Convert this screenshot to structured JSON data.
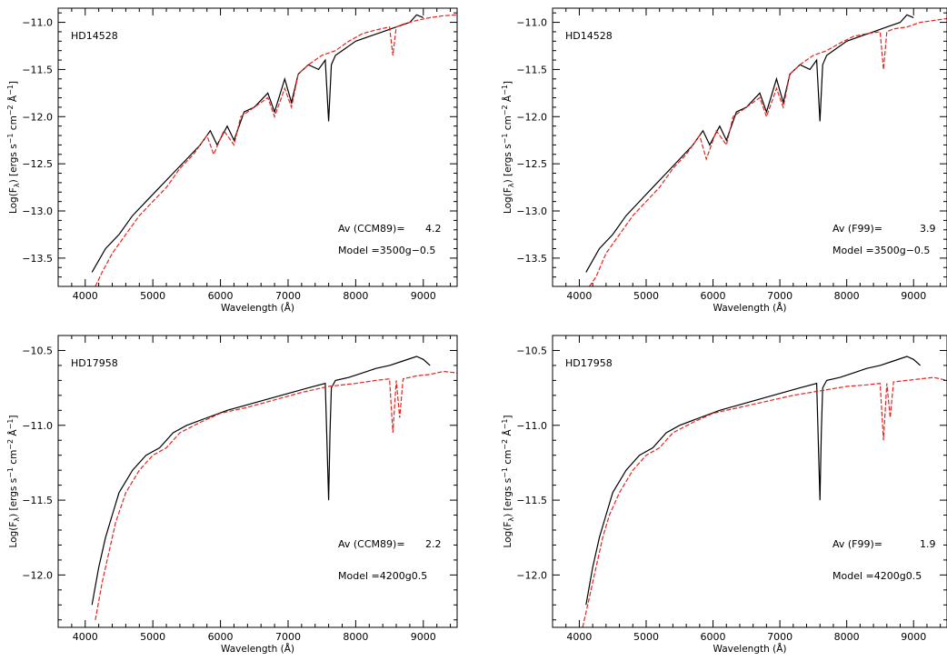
{
  "figure": {
    "xlabel": "Wavelength (Å)",
    "ylabel_parts": [
      "Log(F",
      "λ",
      ") [ergs s",
      "−1",
      " cm",
      "−2",
      " Å",
      "−1",
      "]"
    ]
  },
  "colors": {
    "observed": "#000000",
    "model": "#e8231f",
    "axes": "#000000"
  },
  "chart_data": [
    {
      "type": "line",
      "star": "HD14528",
      "extinction_label": "Av (CCM89)=",
      "extinction_value": "4.2",
      "model_label": "Model =3500g−0.5",
      "xlim": [
        3600,
        9500
      ],
      "ylim": [
        -13.8,
        -10.85
      ],
      "xticks": [
        4000,
        5000,
        6000,
        7000,
        8000,
        9000
      ],
      "yticks": [
        -13.5,
        -13.0,
        -12.5,
        -12.0,
        -11.5,
        -11.0
      ],
      "ytick_labels": [
        "−13.5",
        "−13.0",
        "−12.5",
        "−12.0",
        "−11.5",
        "−11.0"
      ],
      "series": [
        {
          "style": "solid",
          "color": "#000000",
          "x": [
            4100,
            4300,
            4500,
            4700,
            4900,
            5100,
            5300,
            5500,
            5700,
            5850,
            5950,
            6100,
            6200,
            6350,
            6500,
            6700,
            6800,
            6950,
            7050,
            7150,
            7300,
            7450,
            7550,
            7600,
            7620,
            7640,
            7700,
            7800,
            8000,
            8200,
            8400,
            8600,
            8800,
            8900,
            9000
          ],
          "y": [
            -13.65,
            -13.4,
            -13.25,
            -13.05,
            -12.9,
            -12.75,
            -12.6,
            -12.45,
            -12.3,
            -12.15,
            -12.3,
            -12.1,
            -12.25,
            -11.95,
            -11.9,
            -11.75,
            -11.95,
            -11.6,
            -11.85,
            -11.55,
            -11.45,
            -11.5,
            -11.4,
            -12.05,
            -11.75,
            -11.45,
            -11.35,
            -11.3,
            -11.2,
            -11.15,
            -11.1,
            -11.05,
            -11.0,
            -10.92,
            -10.95
          ]
        },
        {
          "style": "dashed",
          "color": "#e8231f",
          "x": [
            4150,
            4250,
            4400,
            4600,
            4800,
            5000,
            5200,
            5400,
            5600,
            5800,
            5900,
            6050,
            6200,
            6300,
            6500,
            6700,
            6800,
            6950,
            7050,
            7150,
            7300,
            7500,
            7700,
            7900,
            8100,
            8300,
            8500,
            8550,
            8600,
            8700,
            8900,
            9100,
            9300,
            9500
          ],
          "y": [
            -13.8,
            -13.65,
            -13.45,
            -13.25,
            -13.05,
            -12.9,
            -12.75,
            -12.55,
            -12.4,
            -12.2,
            -12.4,
            -12.15,
            -12.3,
            -12.0,
            -11.9,
            -11.8,
            -12.0,
            -11.7,
            -11.9,
            -11.55,
            -11.45,
            -11.35,
            -11.3,
            -11.2,
            -11.12,
            -11.08,
            -11.05,
            -11.35,
            -11.05,
            -11.02,
            -10.98,
            -10.95,
            -10.93,
            -10.92
          ]
        }
      ]
    },
    {
      "type": "line",
      "star": "HD14528",
      "extinction_label": "Av (F99)=",
      "extinction_value": "3.9",
      "model_label": "Model =3500g−0.5",
      "xlim": [
        3600,
        9500
      ],
      "ylim": [
        -13.8,
        -10.85
      ],
      "xticks": [
        4000,
        5000,
        6000,
        7000,
        8000,
        9000
      ],
      "yticks": [
        -13.5,
        -13.0,
        -12.5,
        -12.0,
        -11.5,
        -11.0
      ],
      "ytick_labels": [
        "−13.5",
        "−13.0",
        "−12.5",
        "−12.0",
        "−11.5",
        "−11.0"
      ],
      "series": [
        {
          "style": "solid",
          "color": "#000000",
          "x": [
            4100,
            4300,
            4500,
            4700,
            4900,
            5100,
            5300,
            5500,
            5700,
            5850,
            5950,
            6100,
            6200,
            6350,
            6500,
            6700,
            6800,
            6950,
            7050,
            7150,
            7300,
            7450,
            7550,
            7600,
            7620,
            7640,
            7700,
            7800,
            8000,
            8200,
            8400,
            8600,
            8800,
            8900,
            9000
          ],
          "y": [
            -13.65,
            -13.4,
            -13.25,
            -13.05,
            -12.9,
            -12.75,
            -12.6,
            -12.45,
            -12.3,
            -12.15,
            -12.3,
            -12.1,
            -12.25,
            -11.95,
            -11.9,
            -11.75,
            -11.95,
            -11.6,
            -11.85,
            -11.55,
            -11.45,
            -11.5,
            -11.4,
            -12.05,
            -11.75,
            -11.45,
            -11.35,
            -11.3,
            -11.2,
            -11.15,
            -11.1,
            -11.05,
            -11.0,
            -10.92,
            -10.95
          ]
        },
        {
          "style": "dashed",
          "color": "#e8231f",
          "x": [
            4150,
            4250,
            4400,
            4600,
            4800,
            5000,
            5200,
            5400,
            5600,
            5800,
            5900,
            6050,
            6200,
            6300,
            6500,
            6700,
            6800,
            6950,
            7050,
            7150,
            7300,
            7500,
            7700,
            7900,
            8100,
            8300,
            8500,
            8550,
            8600,
            8700,
            8900,
            9100,
            9300,
            9500
          ],
          "y": [
            -13.8,
            -13.7,
            -13.45,
            -13.25,
            -13.05,
            -12.9,
            -12.75,
            -12.55,
            -12.4,
            -12.2,
            -12.45,
            -12.15,
            -12.3,
            -12.0,
            -11.9,
            -11.8,
            -12.0,
            -11.7,
            -11.9,
            -11.55,
            -11.45,
            -11.35,
            -11.3,
            -11.22,
            -11.15,
            -11.12,
            -11.1,
            -11.5,
            -11.1,
            -11.07,
            -11.05,
            -11.0,
            -10.98,
            -10.96
          ]
        }
      ]
    },
    {
      "type": "line",
      "star": "HD17958",
      "extinction_label": "Av (CCM89)=",
      "extinction_value": "2.2",
      "model_label": "Model =4200g0.5",
      "xlim": [
        3600,
        9500
      ],
      "ylim": [
        -12.35,
        -10.4
      ],
      "xticks": [
        4000,
        5000,
        6000,
        7000,
        8000,
        9000
      ],
      "yticks": [
        -12.0,
        -11.5,
        -11.0,
        -10.5
      ],
      "ytick_labels": [
        "−12.0",
        "−11.5",
        "−11.0",
        "−10.5"
      ],
      "series": [
        {
          "style": "solid",
          "color": "#000000",
          "x": [
            4100,
            4200,
            4300,
            4400,
            4500,
            4700,
            4900,
            5100,
            5300,
            5500,
            5800,
            6100,
            6500,
            6900,
            7300,
            7550,
            7600,
            7620,
            7640,
            7700,
            7900,
            8100,
            8300,
            8500,
            8700,
            8900,
            9000,
            9100
          ],
          "y": [
            -12.2,
            -11.95,
            -11.75,
            -11.6,
            -11.45,
            -11.3,
            -11.2,
            -11.15,
            -11.05,
            -11.0,
            -10.95,
            -10.9,
            -10.85,
            -10.8,
            -10.75,
            -10.72,
            -11.5,
            -11.05,
            -10.75,
            -10.7,
            -10.68,
            -10.65,
            -10.62,
            -10.6,
            -10.57,
            -10.54,
            -10.56,
            -10.6
          ]
        },
        {
          "style": "dashed",
          "color": "#e8231f",
          "x": [
            4150,
            4250,
            4350,
            4450,
            4600,
            4800,
            5000,
            5200,
            5400,
            5700,
            6000,
            6400,
            6800,
            7200,
            7600,
            8000,
            8300,
            8500,
            8550,
            8600,
            8650,
            8700,
            8900,
            9100,
            9300,
            9500
          ],
          "y": [
            -12.3,
            -12.05,
            -11.85,
            -11.65,
            -11.45,
            -11.3,
            -11.2,
            -11.15,
            -11.05,
            -10.98,
            -10.92,
            -10.88,
            -10.83,
            -10.78,
            -10.74,
            -10.72,
            -10.7,
            -10.69,
            -11.05,
            -10.7,
            -10.95,
            -10.69,
            -10.67,
            -10.66,
            -10.64,
            -10.65
          ]
        }
      ]
    },
    {
      "type": "line",
      "star": "HD17958",
      "extinction_label": "Av (F99)=",
      "extinction_value": "1.9",
      "model_label": "Model =4200g0.5",
      "xlim": [
        3600,
        9500
      ],
      "ylim": [
        -12.35,
        -10.4
      ],
      "xticks": [
        4000,
        5000,
        6000,
        7000,
        8000,
        9000
      ],
      "yticks": [
        -12.0,
        -11.5,
        -11.0,
        -10.5
      ],
      "ytick_labels": [
        "−12.0",
        "−11.5",
        "−11.0",
        "−10.5"
      ],
      "series": [
        {
          "style": "solid",
          "color": "#000000",
          "x": [
            4100,
            4200,
            4300,
            4400,
            4500,
            4700,
            4900,
            5100,
            5300,
            5500,
            5800,
            6100,
            6500,
            6900,
            7300,
            7550,
            7600,
            7620,
            7640,
            7700,
            7900,
            8100,
            8300,
            8500,
            8700,
            8900,
            9000,
            9100
          ],
          "y": [
            -12.2,
            -11.95,
            -11.75,
            -11.6,
            -11.45,
            -11.3,
            -11.2,
            -11.15,
            -11.05,
            -11.0,
            -10.95,
            -10.9,
            -10.85,
            -10.8,
            -10.75,
            -10.72,
            -11.5,
            -11.05,
            -10.75,
            -10.7,
            -10.68,
            -10.65,
            -10.62,
            -10.6,
            -10.57,
            -10.54,
            -10.56,
            -10.6
          ]
        },
        {
          "style": "dashed",
          "color": "#e8231f",
          "x": [
            4050,
            4150,
            4250,
            4350,
            4450,
            4600,
            4800,
            5000,
            5200,
            5400,
            5700,
            6000,
            6400,
            6800,
            7200,
            7600,
            8000,
            8300,
            8500,
            8550,
            8600,
            8650,
            8700,
            8900,
            9100,
            9300,
            9500
          ],
          "y": [
            -12.35,
            -12.15,
            -11.95,
            -11.75,
            -11.6,
            -11.45,
            -11.3,
            -11.2,
            -11.15,
            -11.05,
            -10.98,
            -10.92,
            -10.88,
            -10.84,
            -10.8,
            -10.77,
            -10.74,
            -10.73,
            -10.72,
            -11.1,
            -10.72,
            -10.95,
            -10.71,
            -10.7,
            -10.69,
            -10.68,
            -10.7
          ]
        }
      ]
    }
  ]
}
